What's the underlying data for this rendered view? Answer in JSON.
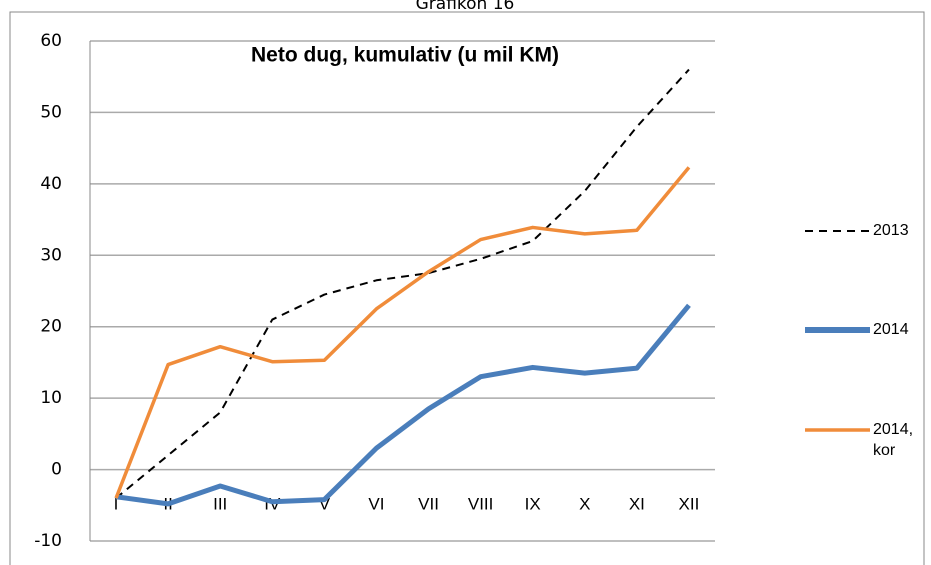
{
  "header": "Grafikon 16",
  "chart_data": {
    "type": "line",
    "title": "Neto dug, kumulativ (u mil KM)",
    "categories": [
      "I",
      "II",
      "III",
      "IV",
      "V",
      "VI",
      "VII",
      "VIII",
      "IX",
      "X",
      "XI",
      "XII"
    ],
    "series": [
      {
        "name": "2013",
        "color": "#000000",
        "dash": true,
        "values": [
          -4,
          2,
          8,
          21,
          24.5,
          26.5,
          27.5,
          29.5,
          32,
          39,
          48,
          56
        ]
      },
      {
        "name": "2014",
        "color": "#4a7ebb",
        "values": [
          -3.8,
          -4.8,
          -2.3,
          -4.5,
          -4.2,
          3,
          8.5,
          13,
          14.3,
          13.5,
          14.2,
          23
        ]
      },
      {
        "name": "2014, kor",
        "color": "#f08c3a",
        "values": [
          -4,
          14.7,
          17.2,
          15.1,
          15.3,
          22.5,
          27.7,
          32.2,
          33.9,
          33,
          33.5,
          42.3
        ]
      }
    ],
    "ylim": [
      -10,
      60
    ],
    "yticks": [
      -10,
      0,
      10,
      20,
      30,
      40,
      50,
      60
    ],
    "grid": true
  }
}
